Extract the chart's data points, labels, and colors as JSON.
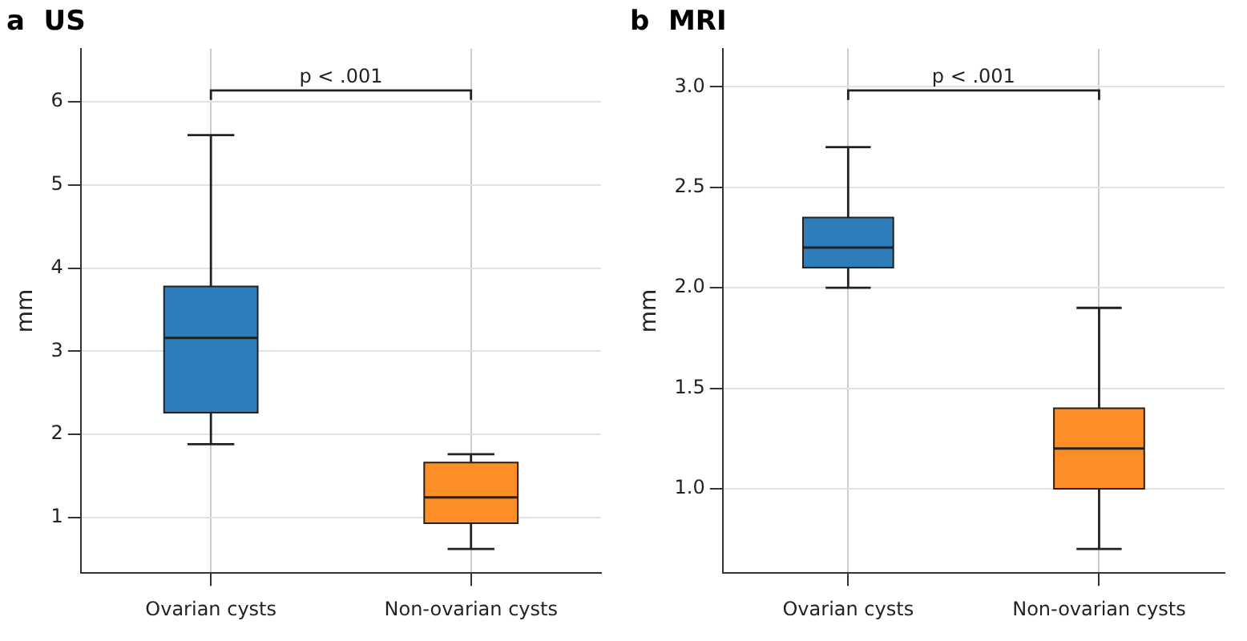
{
  "chart_data": [
    {
      "type": "box",
      "title": "a  US",
      "ylabel": "mm",
      "categories": [
        "Ovarian cysts",
        "Non-ovarian cysts"
      ],
      "colors": [
        "#2f7ebc",
        "#fd8d27"
      ],
      "ylim": [
        0.33,
        6.64
      ],
      "yticks": [
        1,
        2,
        3,
        4,
        5,
        6
      ],
      "grid": true,
      "legend": false,
      "boxes": [
        {
          "low": 1.88,
          "q1": 2.26,
          "median": 3.16,
          "q3": 3.78,
          "high": 5.6
        },
        {
          "low": 0.62,
          "q1": 0.93,
          "median": 1.24,
          "q3": 1.66,
          "high": 1.76
        }
      ],
      "annotations": [
        "p < .001"
      ]
    },
    {
      "type": "box",
      "title": "b  MRI",
      "ylabel": "mm",
      "categories": [
        "Ovarian cysts",
        "Non-ovarian cysts"
      ],
      "colors": [
        "#2f7ebc",
        "#fd8d27"
      ],
      "ylim": [
        0.58,
        3.19
      ],
      "yticks": [
        {
          "value": 1,
          "label": "1.0"
        },
        {
          "value": 1.5,
          "label": "1.5"
        },
        {
          "value": 2,
          "label": "2.0"
        },
        {
          "value": 2.5,
          "label": "2.5"
        },
        {
          "value": 3,
          "label": "3.0"
        }
      ],
      "grid": true,
      "legend": false,
      "boxes": [
        {
          "low": 2.0,
          "q1": 2.1,
          "median": 2.2,
          "q3": 2.35,
          "high": 2.7
        },
        {
          "low": 0.7,
          "q1": 1.0,
          "median": 1.2,
          "q3": 1.4,
          "high": 1.9
        }
      ],
      "annotations": [
        "p < .001"
      ]
    }
  ]
}
